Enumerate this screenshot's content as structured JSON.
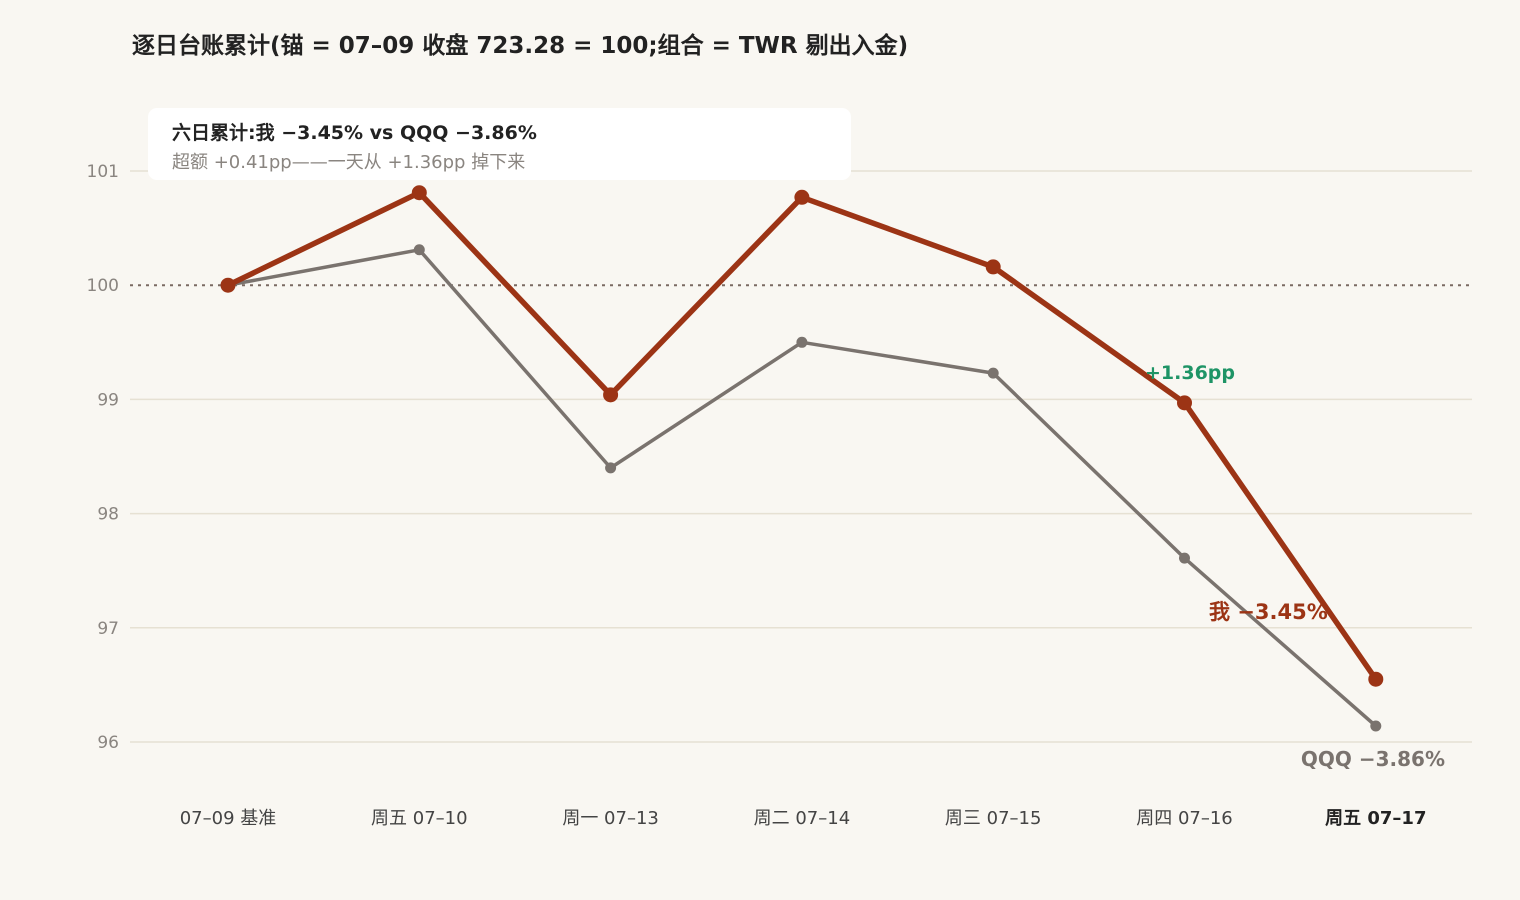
{
  "header": {
    "title": "逐日台账累计(锚 = 07–09 收盘 723.28 = 100;组合 = TWR 剔出入金)"
  },
  "summary": {
    "line1": "六日累计:我 −3.45% vs QQQ −3.86%",
    "line2": "超额 +0.41pp——一天从 +1.36pp 掉下来"
  },
  "annotations": {
    "me_end": "我 −3.45%",
    "qqq_end": "QQQ −3.86%",
    "gap_peak": "+1.36pp"
  },
  "colors": {
    "me": "#9c3415",
    "qqq": "#7a736e",
    "gap": "#1e9466",
    "baseline": "#7a6a62",
    "grid": "#e6e1d3",
    "background": "#f9f7f2"
  },
  "chart_data": {
    "type": "line",
    "title": "逐日台账累计(锚 = 07–09 收盘 723.28 = 100;组合 = TWR 剔出入金)",
    "xlabel": "",
    "ylabel": "",
    "categories": [
      "07–09 基准",
      "周五 07–10",
      "周一 07–13",
      "周二 07–14",
      "周三 07–15",
      "周四 07–16",
      "周五 07–17"
    ],
    "emphasized_category": "周五 07–17",
    "ylim": [
      95.6,
      101.8
    ],
    "yticks": [
      96,
      97,
      98,
      99,
      100,
      101
    ],
    "baseline": 100,
    "grid": true,
    "series": [
      {
        "key": "me",
        "name": "我",
        "values": [
          100.0,
          100.81,
          99.04,
          100.77,
          100.16,
          98.97,
          96.55
        ]
      },
      {
        "key": "qqq",
        "name": "QQQ",
        "values": [
          100.0,
          100.31,
          98.4,
          99.5,
          99.23,
          97.61,
          96.14
        ]
      }
    ]
  }
}
